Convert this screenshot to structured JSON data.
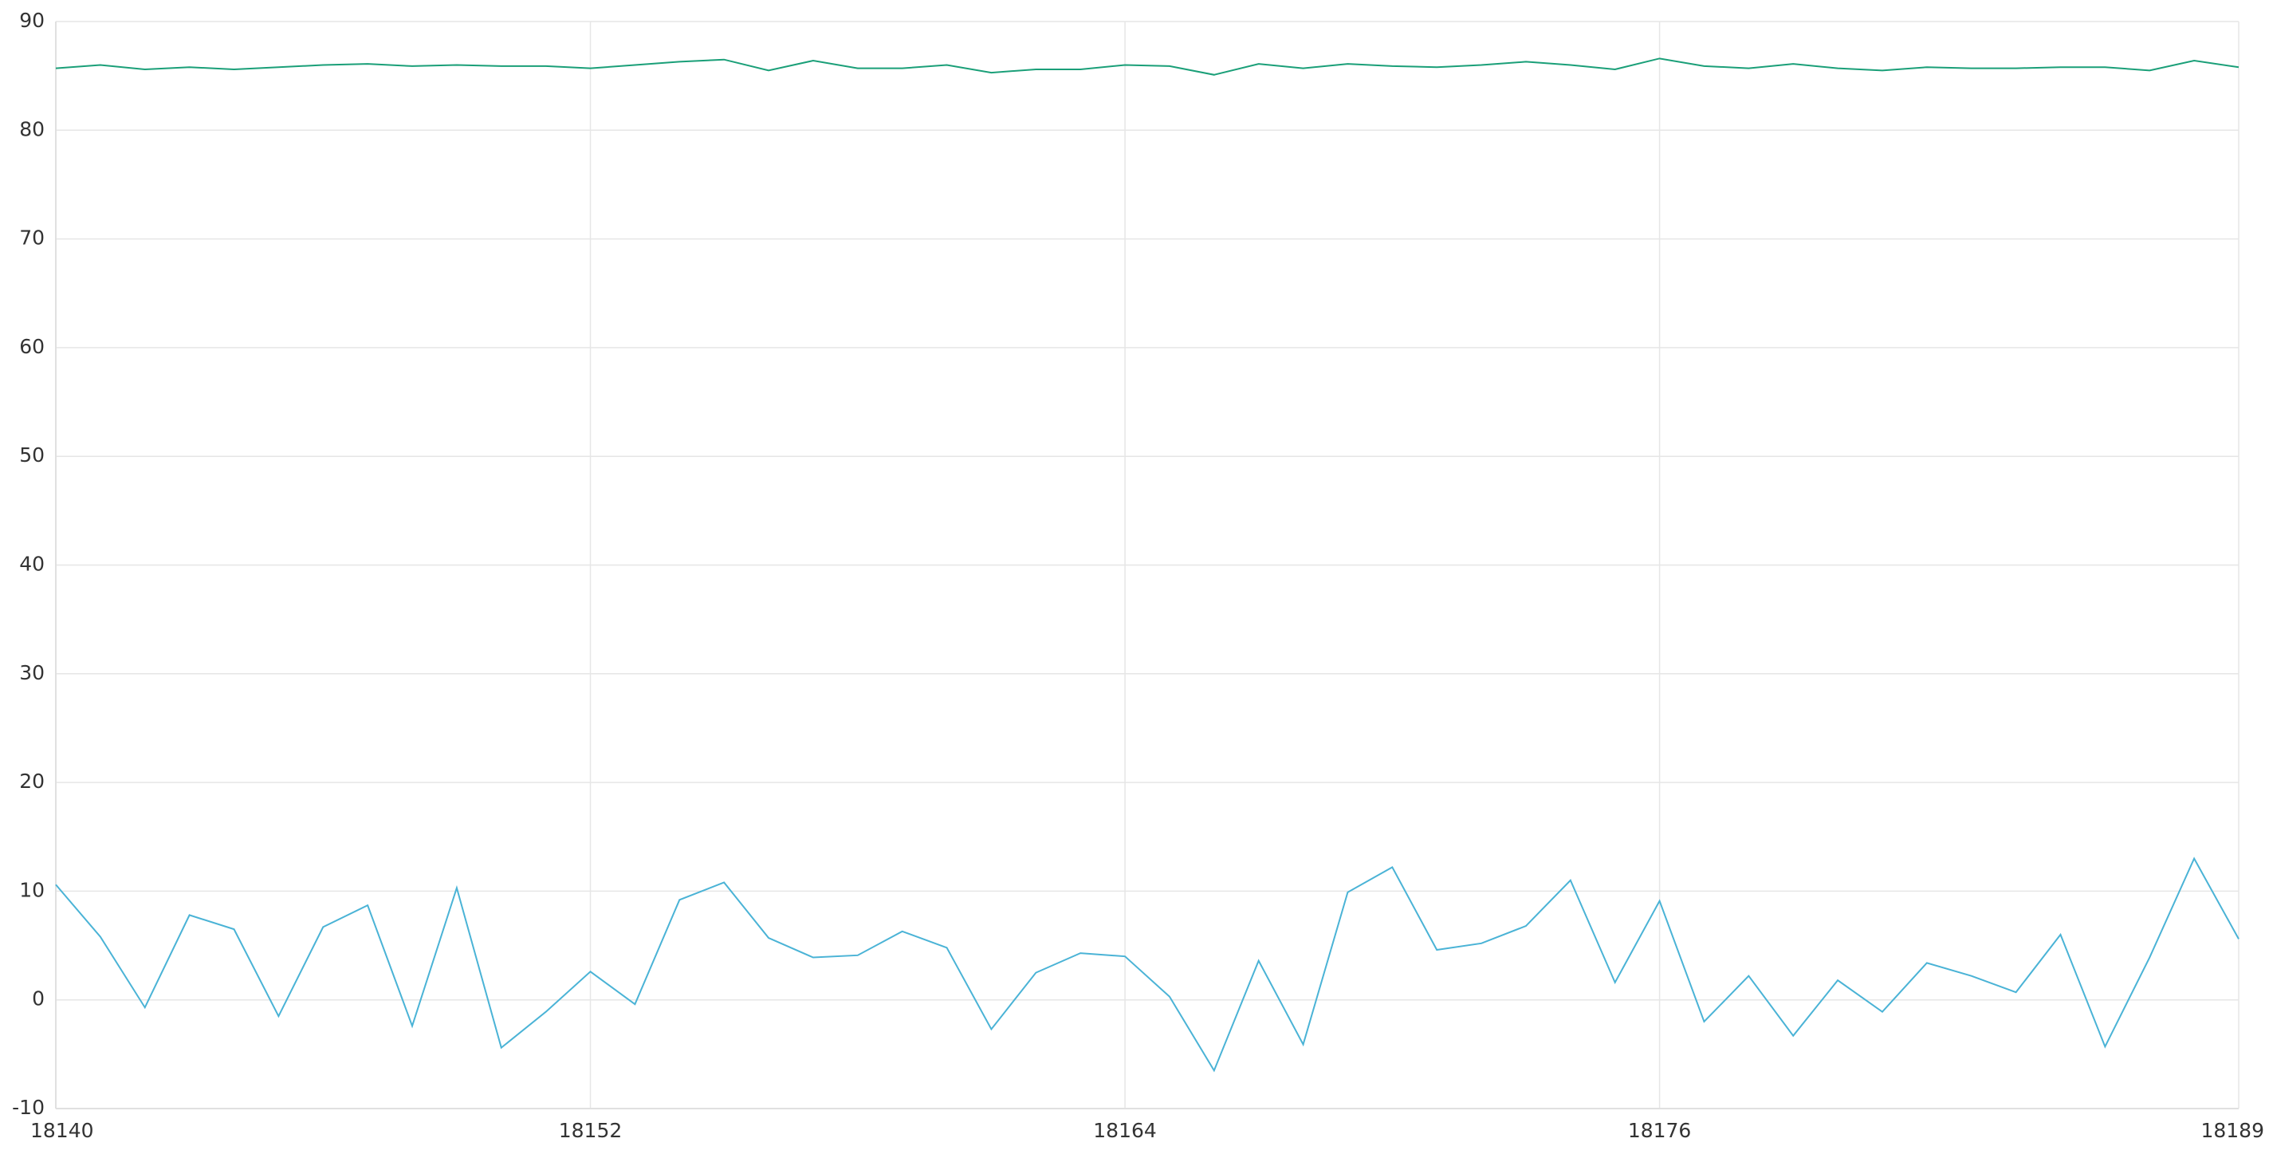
{
  "chart_data": {
    "type": "line",
    "title": "",
    "xlabel": "",
    "ylabel": "",
    "grid": true,
    "legend": "none",
    "x": [
      18140,
      18141,
      18142,
      18143,
      18144,
      18145,
      18146,
      18147,
      18148,
      18149,
      18150,
      18151,
      18152,
      18153,
      18154,
      18155,
      18156,
      18157,
      18158,
      18159,
      18160,
      18161,
      18162,
      18163,
      18164,
      18165,
      18166,
      18167,
      18168,
      18169,
      18170,
      18171,
      18172,
      18173,
      18174,
      18175,
      18176,
      18177,
      18178,
      18179,
      18180,
      18181,
      18182,
      18183,
      18184,
      18185,
      18186,
      18187,
      18188,
      18189
    ],
    "xlim": [
      18140,
      18189
    ],
    "ylim": [
      -10,
      90
    ],
    "x_ticks": [
      18140,
      18152,
      18164,
      18176,
      18189
    ],
    "y_ticks": [
      -10,
      0,
      10,
      20,
      30,
      40,
      50,
      60,
      70,
      80,
      90
    ],
    "series": [
      {
        "color": "#1a9f78",
        "values": [
          85.7,
          86.0,
          85.6,
          85.8,
          85.6,
          85.8,
          86.0,
          86.1,
          85.9,
          86.0,
          85.9,
          85.9,
          85.7,
          86.0,
          86.3,
          86.5,
          85.5,
          86.4,
          85.7,
          85.7,
          86.0,
          85.3,
          85.6,
          85.6,
          86.0,
          85.9,
          85.1,
          86.1,
          85.7,
          86.1,
          85.9,
          85.8,
          86.0,
          86.3,
          86.0,
          85.6,
          86.6,
          85.9,
          85.7,
          86.1,
          85.7,
          85.5,
          85.8,
          85.7,
          85.7,
          85.8,
          85.8,
          85.5,
          86.4,
          85.8
        ]
      },
      {
        "color": "#4ab3d6",
        "values": [
          10.6,
          5.8,
          -0.7,
          7.8,
          6.5,
          -1.5,
          6.7,
          8.7,
          -2.4,
          10.3,
          -4.4,
          -1.1,
          2.6,
          -0.4,
          9.2,
          10.8,
          5.7,
          3.9,
          4.1,
          6.3,
          4.8,
          -2.7,
          2.5,
          4.3,
          4.0,
          0.3,
          -6.5,
          3.6,
          -4.1,
          9.9,
          12.2,
          4.6,
          5.2,
          6.8,
          11.0,
          1.6,
          9.1,
          -2.0,
          2.2,
          -3.3,
          1.8,
          -1.1,
          3.4,
          2.2,
          0.7,
          6.0,
          -4.3,
          3.9,
          13.0,
          5.6
        ]
      }
    ]
  }
}
